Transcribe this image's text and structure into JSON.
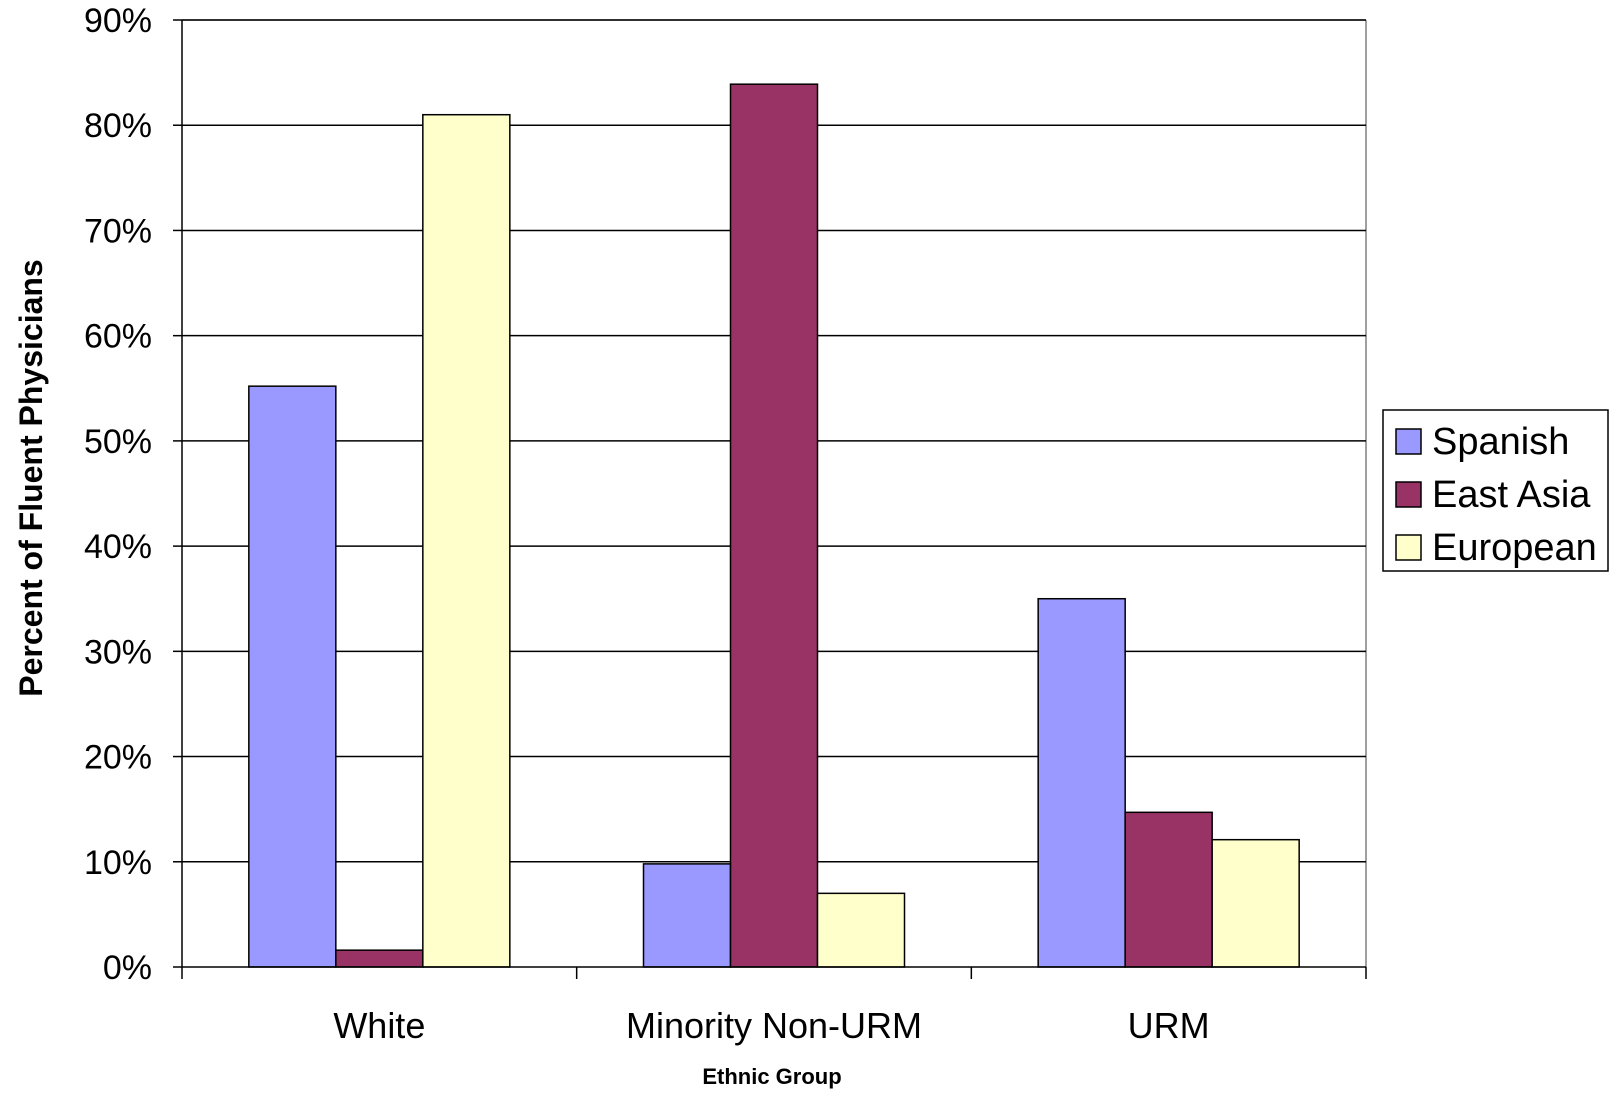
{
  "chart_data": {
    "type": "bar",
    "categories": [
      "White",
      "Minority Non-URM",
      "URM"
    ],
    "series": [
      {
        "name": "Spanish",
        "values": [
          55.2,
          9.8,
          35.0
        ],
        "color": "#9999ff"
      },
      {
        "name": "East Asia",
        "values": [
          1.6,
          83.9,
          14.7
        ],
        "color": "#993366"
      },
      {
        "name": "European",
        "values": [
          81.0,
          7.0,
          12.1
        ],
        "color": "#ffffcc"
      }
    ],
    "title": "",
    "xlabel": "Ethnic Group",
    "ylabel": "Percent of Fluent Physicians",
    "ylim": [
      0,
      90
    ],
    "yticks": [
      "0%",
      "10%",
      "20%",
      "30%",
      "40%",
      "50%",
      "60%",
      "70%",
      "80%",
      "90%"
    ],
    "grid": true,
    "legend_position": "right"
  }
}
